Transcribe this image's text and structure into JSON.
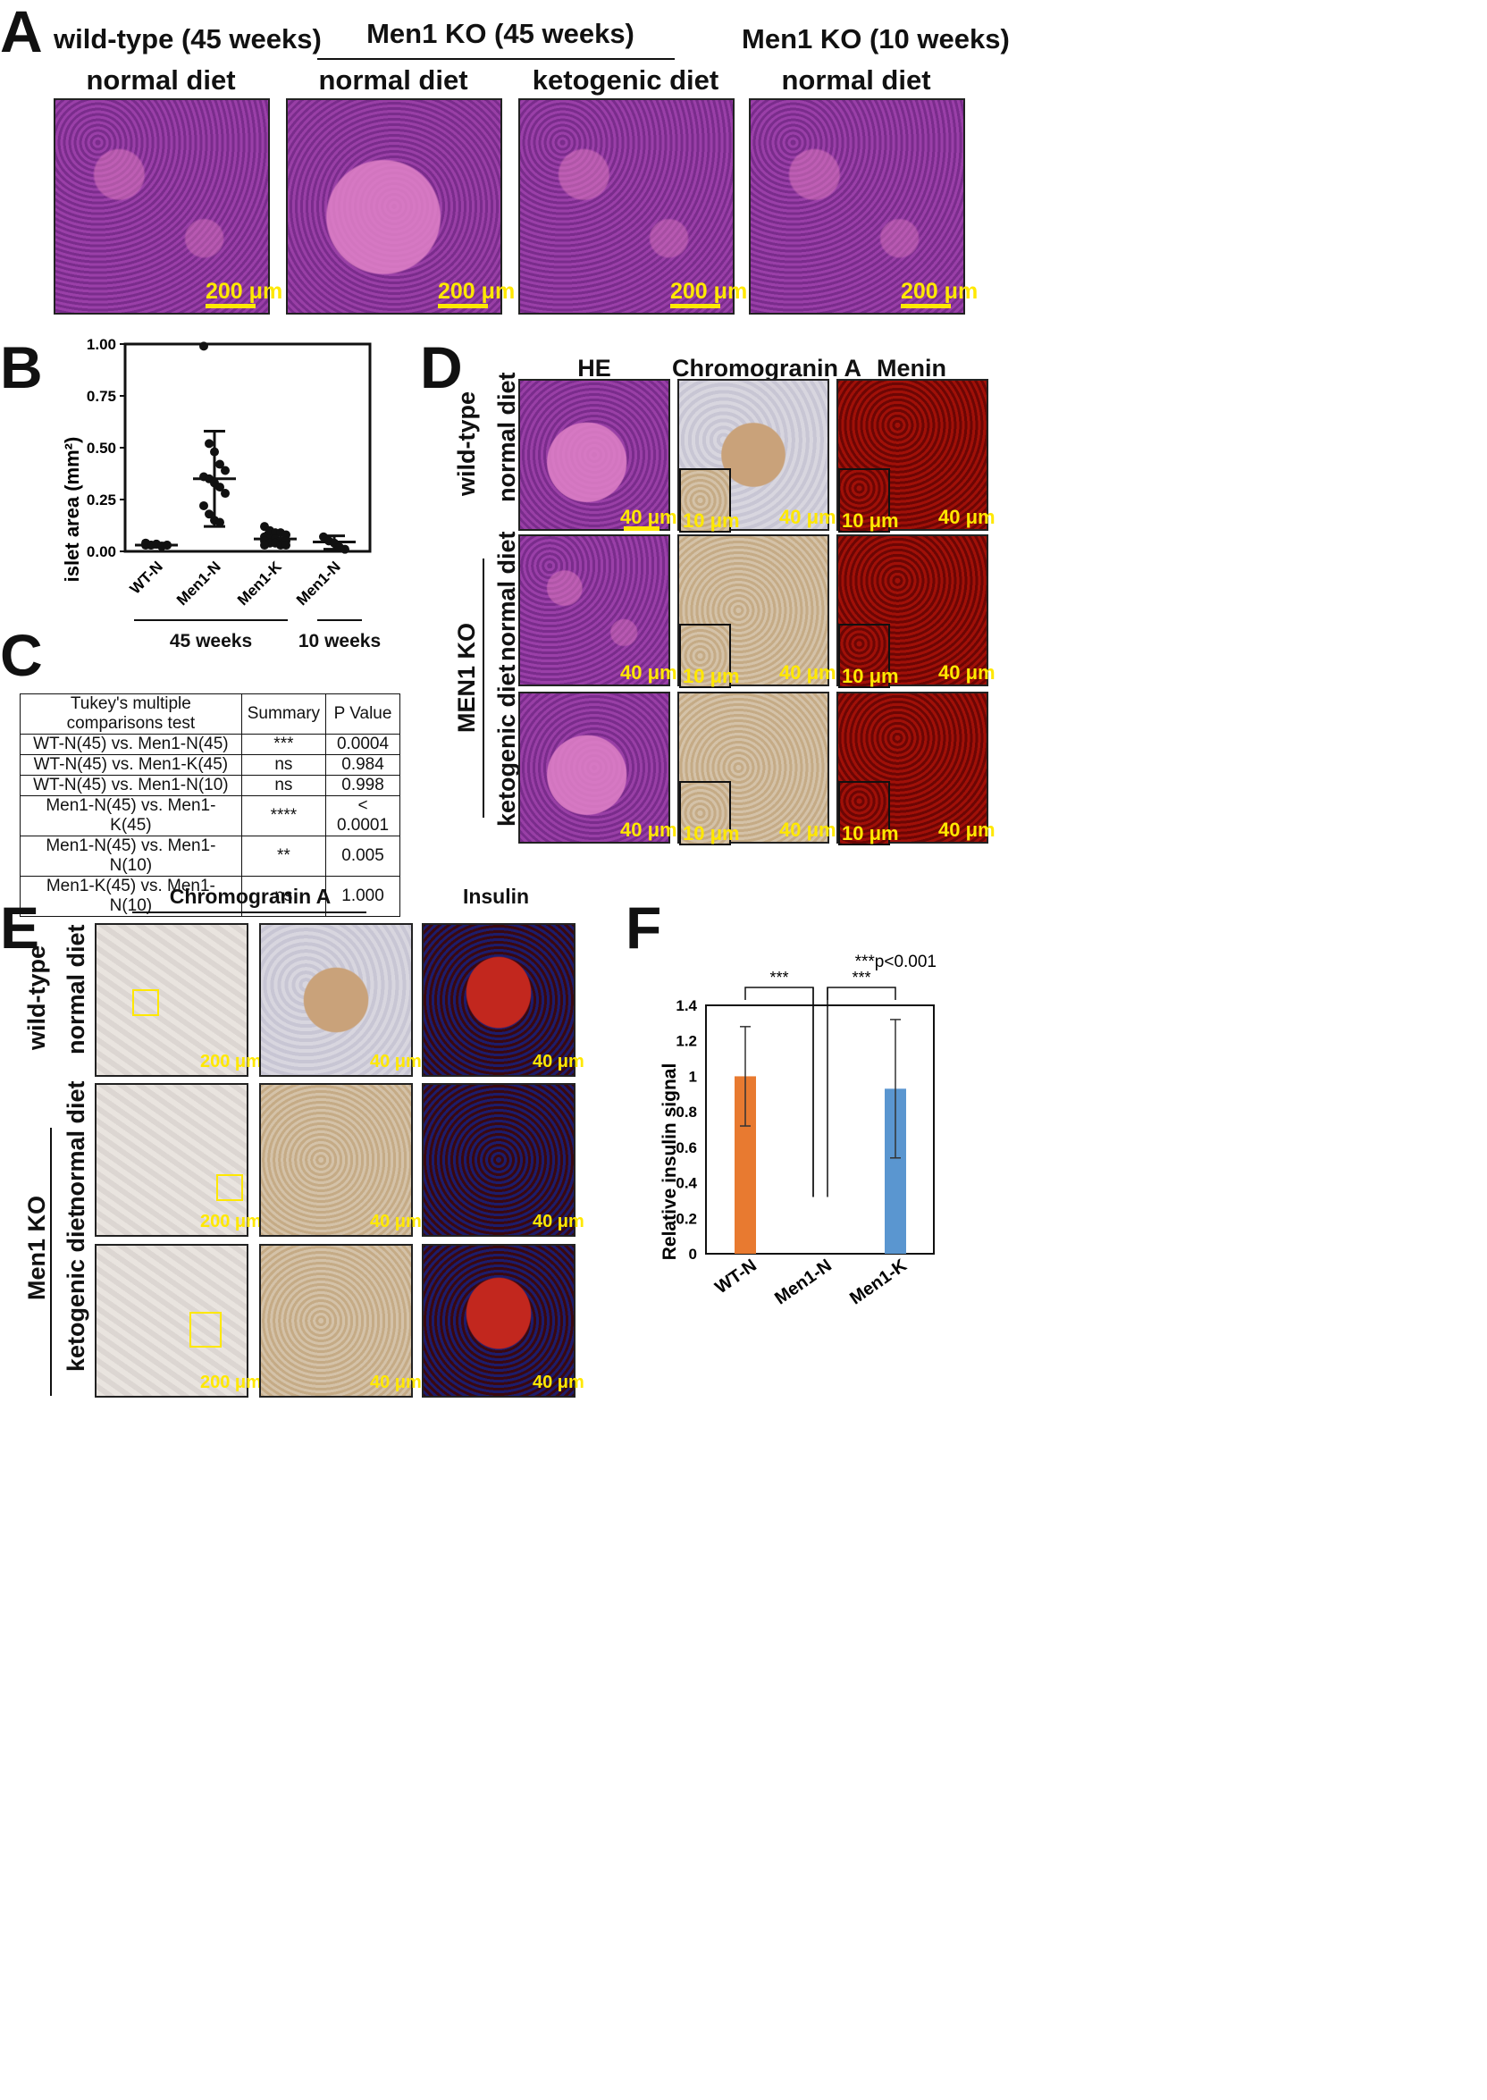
{
  "panels": {
    "a": "A",
    "b": "B",
    "c": "C",
    "d": "D",
    "e": "E",
    "f": "F"
  },
  "panel_a": {
    "headers": {
      "wt": "wild-type (45 weeks)",
      "ko45": "Men1 KO (45 weeks)",
      "ko10": "Men1 KO (10 weeks)"
    },
    "diets": [
      "normal diet",
      "normal diet",
      "ketogenic diet",
      "normal diet"
    ],
    "scale": "200 μm"
  },
  "panel_c": {
    "columns": [
      "Tukey's multiple comparisons test",
      "Summary",
      "P Value"
    ],
    "rows": [
      [
        "WT-N(45) vs. Men1-N(45)",
        "***",
        "0.0004"
      ],
      [
        "WT-N(45) vs. Men1-K(45)",
        "ns",
        "0.984"
      ],
      [
        "WT-N(45) vs. Men1-N(10)",
        "ns",
        "0.998"
      ],
      [
        "Men1-N(45) vs. Men1-K(45)",
        "****",
        "< 0.0001"
      ],
      [
        "Men1-N(45) vs. Men1-N(10)",
        "**",
        "0.005"
      ],
      [
        "Men1-K(45) vs. Men1-N(10)",
        "ns",
        "1.000"
      ]
    ]
  },
  "panel_d": {
    "columns": [
      "HE",
      "Chromogranin A",
      "Menin"
    ],
    "row_wt": "wild-type",
    "row_ko": "MEN1 KO",
    "diets": [
      "normal diet",
      "normal diet",
      "ketogenic diet"
    ],
    "scale40": "40 μm",
    "scale10": "10 μm"
  },
  "panel_e": {
    "columns": [
      "Chromogranin A",
      "Insulin"
    ],
    "row_wt": "wild-type",
    "row_ko": "Men1 KO",
    "diets": [
      "normal diet",
      "normal diet",
      "ketogenic diet"
    ],
    "scale200": "200 μm",
    "scale40": "40 μm"
  },
  "chart_data": [
    {
      "type": "scatter",
      "ylabel": "islet area (mm²)",
      "ylim": [
        0,
        1.0
      ],
      "yticks": [
        "0.00",
        "0.25",
        "0.50",
        "0.75",
        "1.00"
      ],
      "categories": [
        "WT-N",
        "Men1-N",
        "Men1-K",
        "Men1-N"
      ],
      "groups": [
        "45 weeks",
        "10 weeks"
      ],
      "points": [
        [
          0.03,
          0.03,
          0.035,
          0.025,
          0.03,
          0.04,
          0.03,
          0.035,
          0.025,
          0.03
        ],
        [
          0.99,
          0.52,
          0.48,
          0.42,
          0.39,
          0.36,
          0.35,
          0.33,
          0.31,
          0.28,
          0.22,
          0.18,
          0.15,
          0.14
        ],
        [
          0.12,
          0.1,
          0.09,
          0.09,
          0.08,
          0.07,
          0.06,
          0.06,
          0.05,
          0.05,
          0.05,
          0.04,
          0.04,
          0.03,
          0.03,
          0.03
        ],
        [
          0.07,
          0.05,
          0.04,
          0.02,
          0.01
        ]
      ],
      "median": [
        0.03,
        0.35,
        0.06,
        0.045
      ],
      "upper": [
        0.04,
        0.58,
        0.09,
        0.075
      ],
      "lower": [
        0.02,
        0.12,
        0.03,
        0.01
      ]
    },
    {
      "type": "bar",
      "ylabel": "Relative insulin signal",
      "ylim": [
        0,
        1.4
      ],
      "yticks": [
        "0",
        "0.2",
        "0.4",
        "0.6",
        "0.8",
        "1",
        "1.2",
        "1.4"
      ],
      "categories": [
        "WT-N",
        "Men1-N",
        "Men1-K"
      ],
      "values": [
        1.0,
        0,
        0.93
      ],
      "errors": [
        0.28,
        0,
        0.39
      ],
      "colors": [
        "#e87a30",
        "#e87a30",
        "#5a96d0"
      ],
      "sig_labels": [
        "***",
        "***"
      ],
      "note": "***p<0.001"
    }
  ]
}
